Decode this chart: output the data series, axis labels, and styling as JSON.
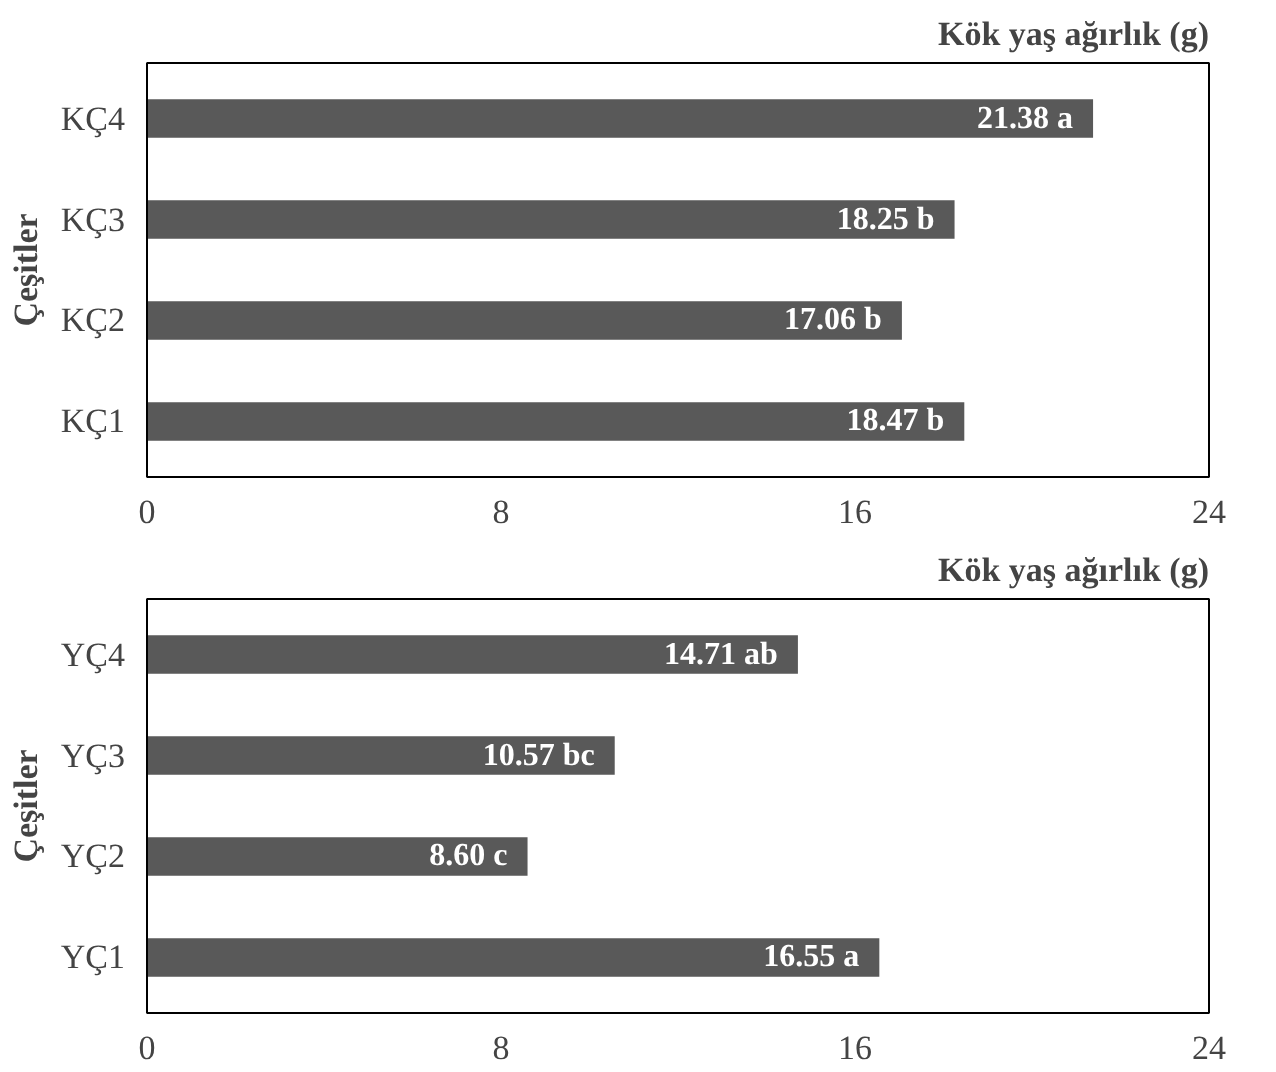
{
  "chart_data": [
    {
      "type": "bar",
      "orientation": "horizontal",
      "title": "Kök yaş ağırlık (g)",
      "ylabel": "Çeşitler",
      "categories": [
        "KÇ4",
        "KÇ3",
        "KÇ2",
        "KÇ1"
      ],
      "values": [
        21.38,
        18.25,
        17.06,
        18.47
      ],
      "value_labels": [
        "21.38 a",
        "18.25 b",
        "17.06 b",
        "18.47 b"
      ],
      "color": "#595959",
      "xlim": [
        0,
        24
      ],
      "xticks": [
        0,
        8,
        16,
        24
      ]
    },
    {
      "type": "bar",
      "orientation": "horizontal",
      "title": "Kök yaş ağırlık (g)",
      "ylabel": "Çeşitler",
      "categories": [
        "YÇ4",
        "YÇ3",
        "YÇ2",
        "YÇ1"
      ],
      "values": [
        14.71,
        10.57,
        8.6,
        16.55
      ],
      "value_labels": [
        "14.71 ab",
        "10.57 bc",
        "8.60 c",
        "16.55 a"
      ],
      "color": "#595959",
      "xlim": [
        0,
        24
      ],
      "xticks": [
        0,
        8,
        16,
        24
      ]
    }
  ]
}
